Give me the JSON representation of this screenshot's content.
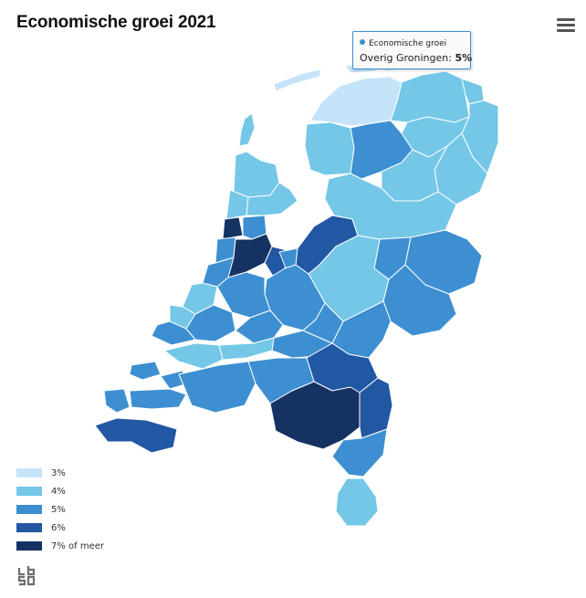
{
  "title": "Economische groei 2021",
  "menu": {
    "icon": "hamburger-menu-icon"
  },
  "tooltip": {
    "series": "Economische groei",
    "region": "Overig Groningen:",
    "value": "5%"
  },
  "legend": [
    {
      "label": "3%",
      "color": "#c6e4f9"
    },
    {
      "label": "4%",
      "color": "#74c7e6"
    },
    {
      "label": "5%",
      "color": "#3d8fd1"
    },
    {
      "label": "6%",
      "color": "#2157a3"
    },
    {
      "label": "7% of meer",
      "color": "#153263"
    }
  ],
  "logo": {
    "icon": "cbs-logo-icon"
  }
}
